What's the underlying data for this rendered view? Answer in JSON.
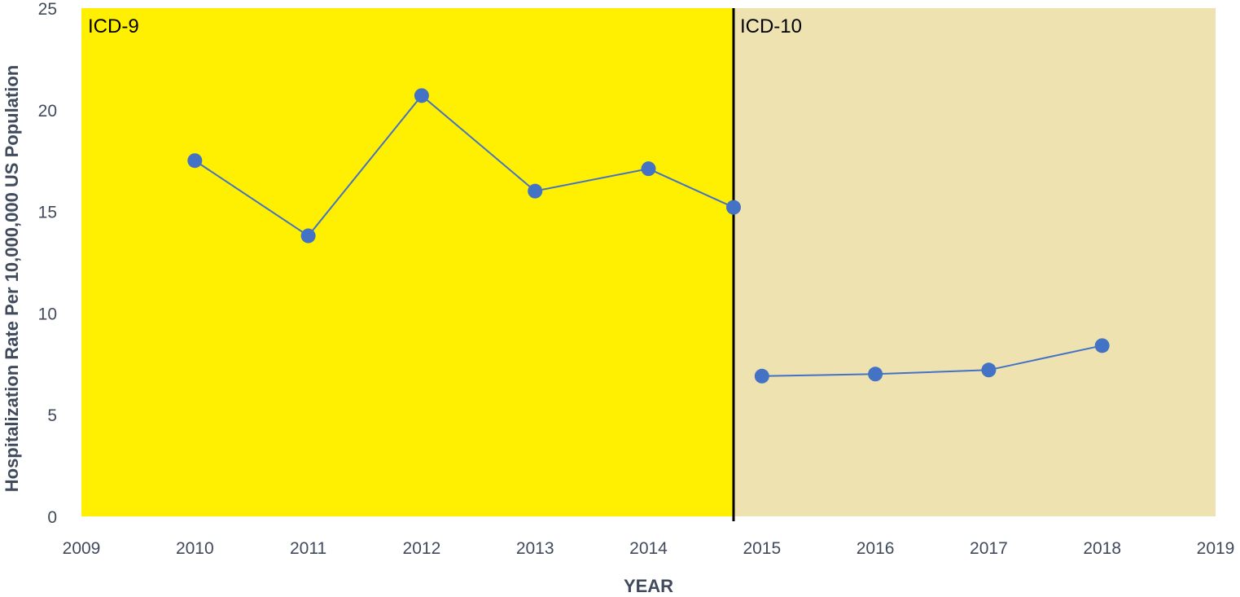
{
  "chart_data": {
    "type": "line",
    "title": "",
    "xlabel": "YEAR",
    "ylabel": "Hospitalization Rate Per 10,000,000 US Population",
    "xlim": [
      2009,
      2019
    ],
    "ylim": [
      0,
      25
    ],
    "x_ticks": [
      "2009",
      "2010",
      "2011",
      "2012",
      "2013",
      "2014",
      "2015",
      "2016",
      "2017",
      "2018",
      "2019"
    ],
    "y_ticks": [
      "0",
      "5",
      "10",
      "15",
      "20",
      "25"
    ],
    "grid": false,
    "legend": "none",
    "regions": [
      {
        "label": "ICD-9",
        "x_start": 2009,
        "x_end": 2014.75,
        "color": "#ffef00"
      },
      {
        "label": "ICD-10",
        "x_start": 2014.75,
        "x_end": 2019,
        "color": "#eee2b1"
      }
    ],
    "divider_x": 2014.75,
    "divider_color": "#000000",
    "series": [
      {
        "color": "#4472c4",
        "points": [
          {
            "x": 2010,
            "y": 17.5
          },
          {
            "x": 2011,
            "y": 13.8
          },
          {
            "x": 2012,
            "y": 20.7
          },
          {
            "x": 2013,
            "y": 16.0
          },
          {
            "x": 2014,
            "y": 17.1
          },
          {
            "x": 2014.75,
            "y": 15.2
          }
        ]
      },
      {
        "color": "#4472c4",
        "points": [
          {
            "x": 2015,
            "y": 6.9
          },
          {
            "x": 2016,
            "y": 7.0
          },
          {
            "x": 2017,
            "y": 7.2
          },
          {
            "x": 2018,
            "y": 8.4
          }
        ]
      }
    ]
  }
}
